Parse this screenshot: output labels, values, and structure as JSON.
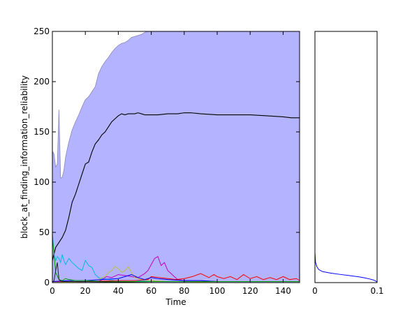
{
  "chart_data": [
    {
      "type": "line",
      "title": "",
      "xlabel": "Time",
      "ylabel": "block_at_finding_information_reliability",
      "xlim": [
        0,
        150
      ],
      "ylim": [
        0,
        250
      ],
      "xticks": [
        0,
        20,
        40,
        60,
        80,
        100,
        120,
        140
      ],
      "yticks": [
        0,
        50,
        100,
        150,
        200,
        250
      ],
      "grid": false,
      "band": {
        "color": "#b3b3ff",
        "upper": {
          "x": [
            0,
            1,
            2,
            3,
            4,
            5,
            6,
            7,
            8,
            10,
            12,
            14,
            16,
            18,
            20,
            22,
            24,
            26,
            28,
            30,
            32,
            34,
            36,
            38,
            40,
            42,
            44,
            46,
            48,
            50,
            52,
            54,
            56,
            58,
            60,
            150
          ],
          "y": [
            131,
            128,
            115,
            118,
            172,
            104,
            105,
            112,
            125,
            140,
            152,
            160,
            167,
            175,
            182,
            185,
            190,
            195,
            208,
            215,
            220,
            224,
            229,
            233,
            236,
            238,
            239,
            241,
            244,
            245,
            246,
            247,
            249,
            250,
            250,
            250
          ]
        },
        "lower": [
          0,
          0
        ]
      },
      "series": [
        {
          "color": "#000000",
          "x": [
            0,
            2,
            4,
            6,
            8,
            10,
            12,
            14,
            16,
            18,
            20,
            22,
            24,
            26,
            28,
            30,
            32,
            34,
            36,
            38,
            40,
            42,
            44,
            46,
            48,
            50,
            52,
            54,
            56,
            60,
            64,
            70,
            76,
            80,
            84,
            90,
            100,
            110,
            120,
            130,
            140,
            145,
            150
          ],
          "y": [
            22,
            35,
            40,
            45,
            52,
            65,
            80,
            88,
            98,
            108,
            118,
            120,
            130,
            138,
            142,
            147,
            150,
            155,
            160,
            163,
            166,
            168,
            167,
            168,
            168,
            168,
            169,
            168,
            167,
            167,
            167,
            168,
            168,
            169,
            169,
            168,
            167,
            167,
            167,
            166,
            165,
            164,
            164
          ]
        },
        {
          "color": "#00bbe0",
          "x": [
            0,
            1,
            2,
            3,
            4,
            5,
            6,
            7,
            8,
            10,
            12,
            14,
            16,
            18,
            20,
            22,
            24,
            26,
            28,
            30,
            34,
            38,
            42,
            50,
            60,
            80,
            100,
            120,
            150
          ],
          "y": [
            50,
            28,
            22,
            26,
            24,
            20,
            28,
            22,
            18,
            24,
            20,
            17,
            14,
            12,
            22,
            17,
            15,
            8,
            5,
            4,
            3,
            2,
            2,
            2,
            1,
            1,
            1,
            1,
            1
          ]
        },
        {
          "color": "#c000c0",
          "x": [
            0,
            10,
            20,
            28,
            30,
            33,
            36,
            40,
            44,
            48,
            52,
            56,
            58,
            60,
            62,
            64,
            66,
            68,
            70,
            72,
            74,
            76,
            80,
            90,
            100,
            110,
            120,
            130,
            140,
            150
          ],
          "y": [
            0,
            0,
            1,
            1,
            3,
            6,
            5,
            8,
            7,
            6,
            5,
            9,
            12,
            18,
            24,
            26,
            17,
            20,
            12,
            9,
            6,
            3,
            2,
            2,
            1,
            1,
            1,
            1,
            1,
            1
          ]
        },
        {
          "color": "#c0c040",
          "x": [
            0,
            20,
            28,
            30,
            32,
            34,
            36,
            38,
            40,
            42,
            44,
            46,
            48,
            50,
            54,
            60,
            70,
            80,
            100,
            150
          ],
          "y": [
            0,
            1,
            3,
            5,
            6,
            10,
            12,
            16,
            14,
            10,
            12,
            16,
            10,
            5,
            3,
            2,
            1,
            1,
            0,
            0
          ]
        },
        {
          "color": "#ff0000",
          "x": [
            0,
            10,
            20,
            40,
            50,
            58,
            60,
            70,
            75,
            80,
            85,
            90,
            95,
            98,
            100,
            104,
            108,
            112,
            116,
            120,
            124,
            128,
            132,
            136,
            140,
            144,
            148,
            150
          ],
          "y": [
            1,
            1,
            1,
            2,
            2,
            3,
            6,
            4,
            3,
            4,
            6,
            9,
            5,
            8,
            6,
            4,
            6,
            3,
            8,
            4,
            6,
            3,
            5,
            3,
            6,
            3,
            4,
            2
          ]
        },
        {
          "color": "#0000ff",
          "x": [
            0,
            10,
            20,
            30,
            40,
            44,
            48,
            52,
            56,
            60,
            64,
            70,
            80,
            90,
            100,
            110,
            120,
            130,
            140,
            150
          ],
          "y": [
            1,
            2,
            2,
            3,
            4,
            6,
            8,
            5,
            3,
            5,
            4,
            3,
            2,
            2,
            1,
            1,
            1,
            1,
            1,
            1
          ]
        },
        {
          "color": "#00a000",
          "x": [
            0,
            2,
            4,
            6,
            8,
            10,
            14,
            20,
            30,
            40,
            60,
            80,
            100,
            120,
            150
          ],
          "y": [
            46,
            10,
            3,
            2,
            4,
            3,
            2,
            2,
            1,
            1,
            1,
            1,
            1,
            1,
            1
          ]
        },
        {
          "color": "#202020",
          "x": [
            0,
            1,
            2,
            3,
            4,
            6,
            8,
            20,
            60,
            100,
            150
          ],
          "y": [
            0,
            2,
            12,
            20,
            3,
            1,
            1,
            1,
            0,
            0,
            0
          ]
        }
      ]
    },
    {
      "type": "line",
      "title": "",
      "xlabel": "",
      "ylabel": "",
      "xlim": [
        0,
        0.1
      ],
      "ylim": [
        0,
        250
      ],
      "xticks": [
        0,
        0.1
      ],
      "xticklabels": [
        "0",
        "0.1"
      ],
      "grid": false,
      "series": [
        {
          "color": "#0000ff",
          "x": [
            0.0,
            0.0005,
            0.001,
            0.003,
            0.006,
            0.012,
            0.025,
            0.04,
            0.055,
            0.07,
            0.08,
            0.088,
            0.094,
            0.098,
            0.1
          ],
          "y": [
            30,
            25,
            20,
            16,
            13,
            11,
            9.5,
            8.2,
            7,
            5.8,
            4.7,
            3.6,
            2.6,
            1.5,
            0.5
          ]
        }
      ]
    }
  ]
}
